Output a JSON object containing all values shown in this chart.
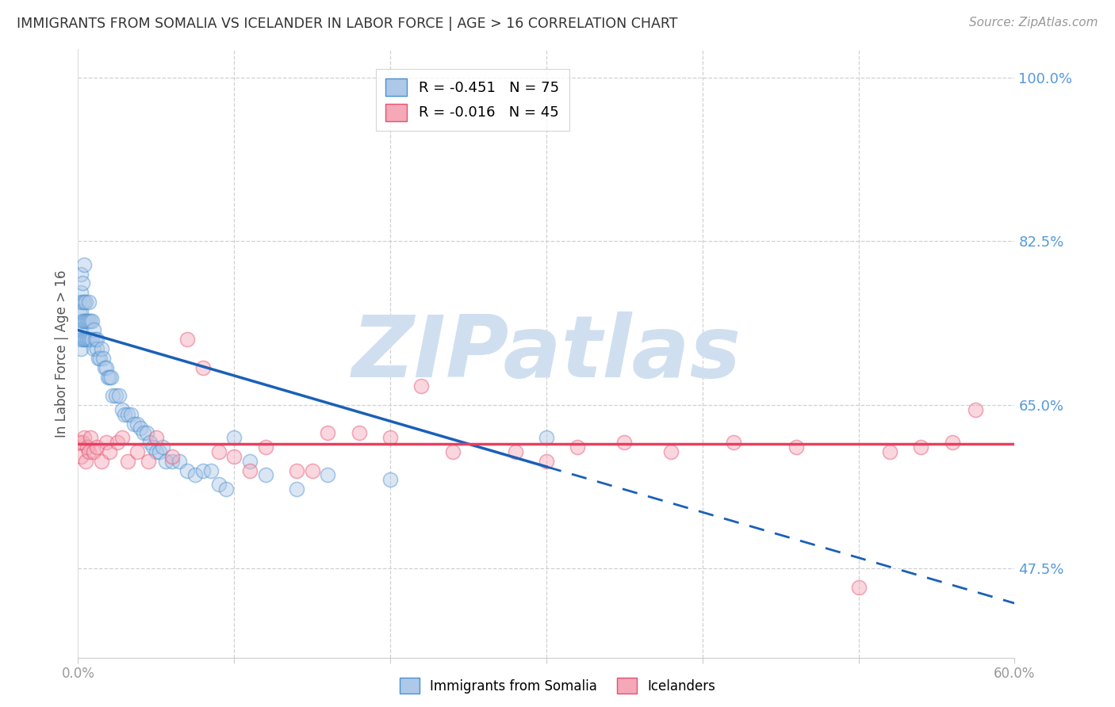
{
  "title": "IMMIGRANTS FROM SOMALIA VS ICELANDER IN LABOR FORCE | AGE > 16 CORRELATION CHART",
  "source": "Source: ZipAtlas.com",
  "ylabel": "In Labor Force | Age > 16",
  "yticks": [
    0.475,
    0.65,
    0.825,
    1.0
  ],
  "ytick_labels": [
    "47.5%",
    "65.0%",
    "82.5%",
    "100.0%"
  ],
  "xmin": 0.0,
  "xmax": 0.6,
  "ymin": 0.38,
  "ymax": 1.03,
  "somalia_R": -0.451,
  "somalia_N": 75,
  "iceland_R": -0.016,
  "iceland_N": 45,
  "somalia_color": "#adc8e8",
  "iceland_color": "#f4a8b8",
  "somalia_edge_color": "#4a90d0",
  "iceland_edge_color": "#e85070",
  "somalia_line_color": "#1a60b8",
  "iceland_line_color": "#e84060",
  "watermark_color": "#d0dff0",
  "grid_color": "#cccccc",
  "right_axis_color": "#5599dd",
  "bottom_legend_somalia": "Immigrants from Somalia",
  "bottom_legend_iceland": "Icelanders",
  "somalia_trend_y0": 0.73,
  "somalia_trend_y_at_x060": 0.438,
  "iceland_trend_y": 0.608,
  "scatter_alpha": 0.45,
  "scatter_size": 170,
  "somalia_scatter_x": [
    0.001,
    0.001,
    0.001,
    0.002,
    0.002,
    0.002,
    0.002,
    0.002,
    0.003,
    0.003,
    0.003,
    0.003,
    0.004,
    0.004,
    0.004,
    0.004,
    0.005,
    0.005,
    0.005,
    0.006,
    0.006,
    0.007,
    0.007,
    0.007,
    0.008,
    0.008,
    0.009,
    0.009,
    0.01,
    0.01,
    0.011,
    0.012,
    0.012,
    0.013,
    0.014,
    0.015,
    0.016,
    0.017,
    0.018,
    0.019,
    0.02,
    0.021,
    0.022,
    0.024,
    0.026,
    0.028,
    0.03,
    0.032,
    0.034,
    0.036,
    0.038,
    0.04,
    0.042,
    0.044,
    0.046,
    0.048,
    0.05,
    0.052,
    0.054,
    0.056,
    0.06,
    0.065,
    0.07,
    0.075,
    0.08,
    0.085,
    0.09,
    0.095,
    0.1,
    0.11,
    0.12,
    0.14,
    0.16,
    0.2,
    0.3
  ],
  "somalia_scatter_y": [
    0.72,
    0.75,
    0.76,
    0.71,
    0.73,
    0.75,
    0.77,
    0.79,
    0.72,
    0.74,
    0.76,
    0.78,
    0.72,
    0.74,
    0.76,
    0.8,
    0.72,
    0.74,
    0.76,
    0.72,
    0.74,
    0.72,
    0.74,
    0.76,
    0.72,
    0.74,
    0.72,
    0.74,
    0.71,
    0.73,
    0.72,
    0.71,
    0.72,
    0.7,
    0.7,
    0.71,
    0.7,
    0.69,
    0.69,
    0.68,
    0.68,
    0.68,
    0.66,
    0.66,
    0.66,
    0.645,
    0.64,
    0.64,
    0.64,
    0.63,
    0.63,
    0.625,
    0.62,
    0.62,
    0.61,
    0.605,
    0.6,
    0.6,
    0.605,
    0.59,
    0.59,
    0.59,
    0.58,
    0.575,
    0.58,
    0.58,
    0.565,
    0.56,
    0.615,
    0.59,
    0.575,
    0.56,
    0.575,
    0.57,
    0.615
  ],
  "iceland_scatter_x": [
    0.001,
    0.002,
    0.003,
    0.004,
    0.005,
    0.006,
    0.007,
    0.008,
    0.01,
    0.012,
    0.015,
    0.018,
    0.02,
    0.025,
    0.028,
    0.032,
    0.038,
    0.045,
    0.05,
    0.06,
    0.07,
    0.08,
    0.09,
    0.1,
    0.11,
    0.12,
    0.14,
    0.15,
    0.16,
    0.18,
    0.2,
    0.22,
    0.24,
    0.28,
    0.3,
    0.32,
    0.35,
    0.38,
    0.42,
    0.46,
    0.5,
    0.52,
    0.54,
    0.56,
    0.575
  ],
  "iceland_scatter_y": [
    0.61,
    0.595,
    0.61,
    0.615,
    0.59,
    0.605,
    0.6,
    0.615,
    0.6,
    0.605,
    0.59,
    0.61,
    0.6,
    0.61,
    0.615,
    0.59,
    0.6,
    0.59,
    0.615,
    0.595,
    0.72,
    0.69,
    0.6,
    0.595,
    0.58,
    0.605,
    0.58,
    0.58,
    0.62,
    0.62,
    0.615,
    0.67,
    0.6,
    0.6,
    0.59,
    0.605,
    0.61,
    0.6,
    0.61,
    0.605,
    0.455,
    0.6,
    0.605,
    0.61,
    0.645
  ]
}
